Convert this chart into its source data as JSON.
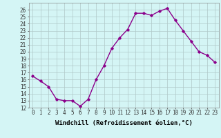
{
  "x": [
    0,
    1,
    2,
    3,
    4,
    5,
    6,
    7,
    8,
    9,
    10,
    11,
    12,
    13,
    14,
    15,
    16,
    17,
    18,
    19,
    20,
    21,
    22,
    23
  ],
  "y": [
    16.5,
    15.8,
    15.0,
    13.2,
    13.0,
    13.0,
    12.2,
    13.2,
    16.0,
    18.0,
    20.5,
    22.0,
    23.2,
    25.5,
    25.5,
    25.2,
    25.8,
    26.2,
    24.5,
    23.0,
    21.5,
    20.0,
    19.5,
    18.5
  ],
  "line_color": "#8b008b",
  "marker": "D",
  "marker_size": 1.8,
  "background_color": "#d4f5f5",
  "grid_color": "#b0c8c8",
  "xlabel": "Windchill (Refroidissement éolien,°C)",
  "ylim": [
    12,
    27
  ],
  "xlim": [
    -0.5,
    23.5
  ],
  "yticks": [
    12,
    13,
    14,
    15,
    16,
    17,
    18,
    19,
    20,
    21,
    22,
    23,
    24,
    25,
    26
  ],
  "xtick_labels": [
    "0",
    "1",
    "2",
    "3",
    "4",
    "5",
    "6",
    "7",
    "8",
    "9",
    "10",
    "11",
    "12",
    "13",
    "14",
    "15",
    "16",
    "17",
    "18",
    "19",
    "20",
    "21",
    "22",
    "23"
  ],
  "tick_fontsize": 5.5,
  "xlabel_fontsize": 6.5,
  "line_width": 1.0
}
